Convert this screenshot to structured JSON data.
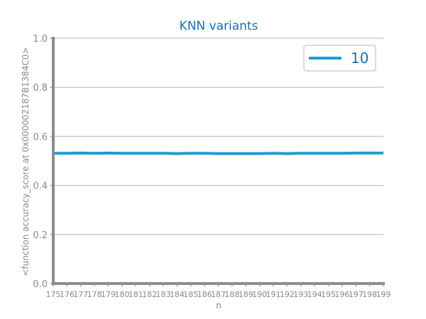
{
  "chart_data": {
    "type": "line",
    "title": "KNN variants",
    "xlabel": "n",
    "ylabel": "<function accuracy_score at 0x000002187B1384C0>",
    "xlim": [
      175,
      199
    ],
    "ylim": [
      0.0,
      1.0
    ],
    "x_ticks": [
      "175",
      "176",
      "177",
      "178",
      "179",
      "180",
      "181",
      "182",
      "183",
      "184",
      "185",
      "186",
      "187",
      "188",
      "189",
      "190",
      "191",
      "192",
      "193",
      "194",
      "195",
      "196",
      "197",
      "198",
      "199"
    ],
    "y_ticks": [
      "0.0",
      "0.2",
      "0.4",
      "0.6",
      "0.8",
      "1.0"
    ],
    "y_tick_values": [
      0.0,
      0.2,
      0.4,
      0.6,
      0.8,
      1.0
    ],
    "grid": "horizontal",
    "legend_position": "top-right",
    "series": [
      {
        "name": "10",
        "color": "#1f9ad6",
        "x": [
          175,
          176,
          177,
          178,
          179,
          180,
          181,
          182,
          183,
          184,
          185,
          186,
          187,
          188,
          189,
          190,
          191,
          192,
          193,
          194,
          195,
          196,
          197,
          198,
          199
        ],
        "values": [
          0.531,
          0.531,
          0.532,
          0.531,
          0.532,
          0.531,
          0.531,
          0.531,
          0.531,
          0.53,
          0.531,
          0.531,
          0.53,
          0.53,
          0.53,
          0.53,
          0.531,
          0.53,
          0.531,
          0.531,
          0.531,
          0.531,
          0.532,
          0.532,
          0.532
        ]
      }
    ]
  }
}
